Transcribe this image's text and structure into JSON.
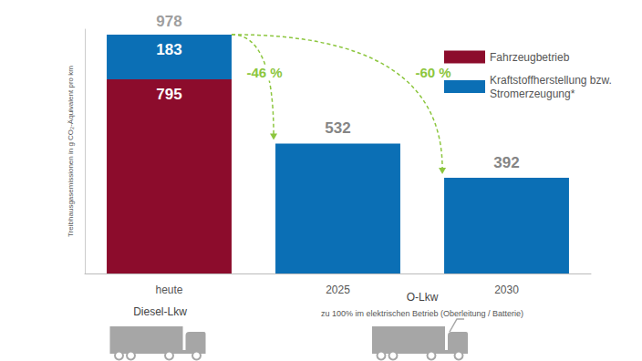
{
  "chart_data": {
    "type": "bar",
    "stacked": true,
    "y_label": "Treibhausgasemissionen in g CO₂-Äquivalent pro km",
    "categories": [
      "heute",
      "2025",
      "2030"
    ],
    "series": [
      {
        "name": "Fahrzeugbetrieb",
        "color": "#8c0c2c",
        "values": [
          795,
          null,
          null
        ]
      },
      {
        "name": "Kraftstoffherstellung bzw. Stromerzeugung*",
        "color": "#0b6fb5",
        "values": [
          183,
          532,
          392
        ]
      }
    ],
    "totals": [
      978,
      null,
      null
    ],
    "reductions": [
      {
        "from": "heute",
        "to": "2025",
        "label": "-46 %"
      },
      {
        "from": "heute",
        "to": "2030",
        "label": "-60 %"
      }
    ],
    "vehicles": [
      {
        "label": "Diesel-Lkw",
        "categories": [
          "heute"
        ]
      },
      {
        "label": "O-Lkw",
        "note": "zu 100% im elektrischen Betrieb (Oberleitung / Batterie)",
        "categories": [
          "2025",
          "2030"
        ]
      }
    ],
    "ylim": [
      0,
      1000
    ],
    "yticks": [],
    "tick_labels": "x",
    "grid": false,
    "data_labels": true,
    "legend": "top right"
  }
}
